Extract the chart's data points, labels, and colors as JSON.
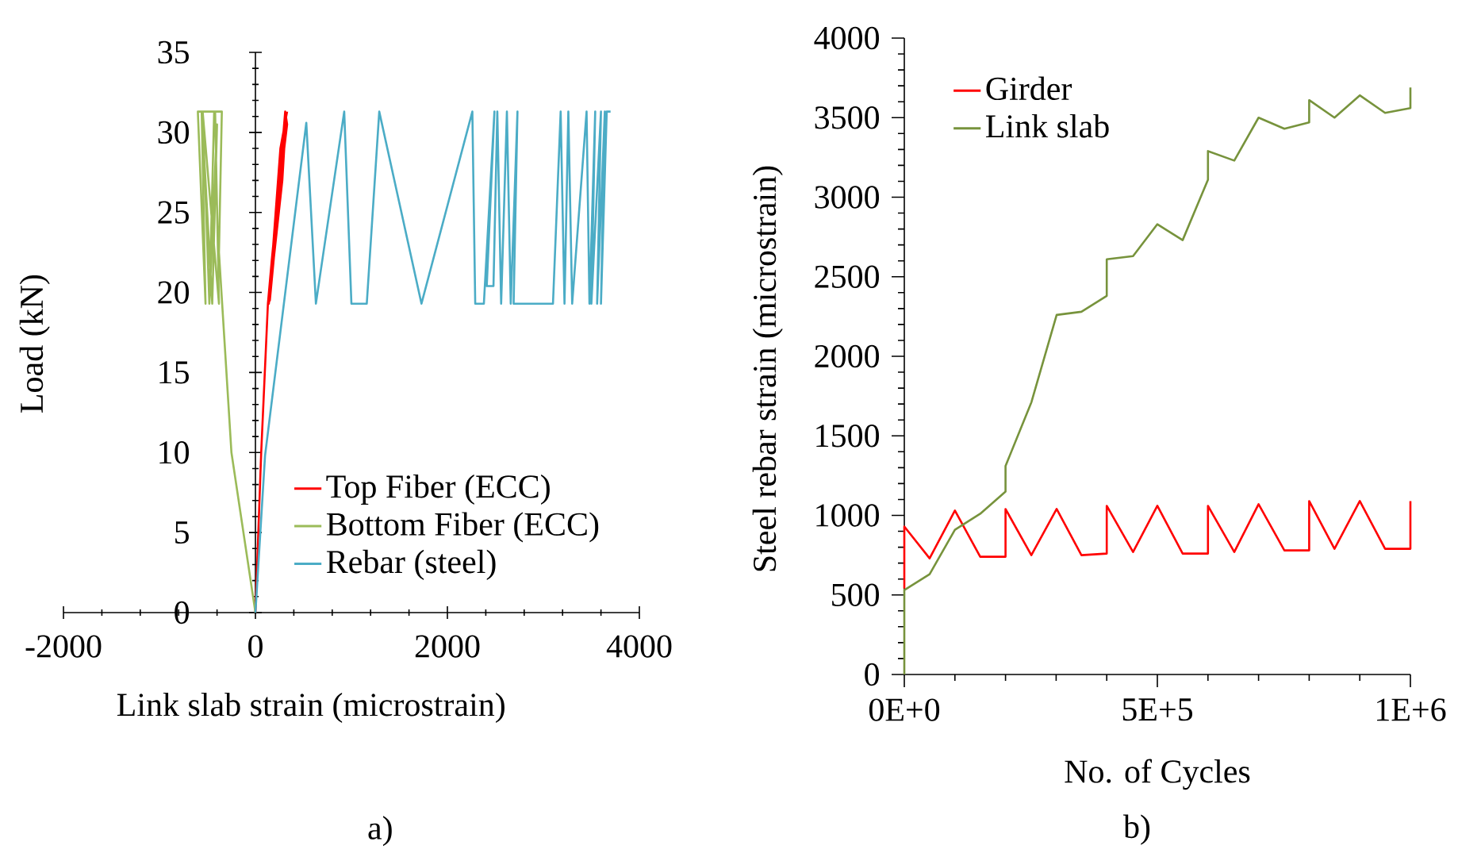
{
  "chart_data": [
    {
      "type": "line",
      "xlabel": "Link slab strain (microstrain)",
      "ylabel": "Load (kN)",
      "annotations": [
        "a)"
      ],
      "xlim": [
        -2000,
        4000
      ],
      "ylim": [
        0,
        35
      ],
      "xticks": [
        -2000,
        0,
        2000,
        4000
      ],
      "yticks": [
        0,
        5,
        10,
        15,
        20,
        25,
        30,
        35
      ],
      "legend": "bottom right",
      "marker": "none",
      "line_style": "solid",
      "series": [
        {
          "name": "Top Fiber (ECC)",
          "color": "#ff0000",
          "x": [
            0,
            60,
            130,
            170,
            250,
            310,
            330,
            300,
            150,
            200,
            320,
            280,
            140,
            260,
            330
          ],
          "values": [
            0,
            10,
            19.3,
            22,
            27,
            31.3,
            30.5,
            29,
            19.5,
            24,
            31,
            27,
            19.3,
            29,
            31.3
          ]
        },
        {
          "name": "Bottom Fiber (ECC)",
          "color": "#9bbb59",
          "x": [
            0,
            -250,
            -380,
            -350,
            -430,
            -480,
            -430,
            -600,
            -520,
            -560,
            -450,
            -400,
            -480,
            -550,
            -380,
            -420
          ],
          "values": [
            0,
            10,
            22.5,
            31.3,
            31.3,
            19.3,
            31.3,
            31.3,
            19.3,
            31.3,
            19.3,
            30.5,
            19.3,
            31.3,
            19.3,
            31.3
          ]
        },
        {
          "name": "Rebar (steel)",
          "color": "#4bacc6",
          "x": [
            0,
            100,
            530,
            630,
            925,
            1000,
            1160,
            1290,
            1730,
            2260,
            2290,
            2380,
            2490,
            2410,
            2480,
            2520,
            2560,
            2620,
            2660,
            2730,
            2690,
            3100,
            3180,
            3220,
            3260,
            3300,
            3450,
            3480,
            3540,
            3500,
            3600,
            3560,
            3640,
            3600,
            3660,
            3700
          ],
          "values": [
            0,
            9.8,
            30.6,
            19.3,
            31.3,
            19.3,
            19.3,
            31.3,
            19.3,
            31.3,
            19.3,
            19.3,
            31.3,
            20.4,
            20.4,
            31.3,
            19.3,
            31.3,
            19.3,
            31.3,
            19.3,
            19.3,
            31.3,
            19.3,
            31.3,
            19.3,
            31.3,
            19.3,
            31.3,
            19.3,
            31.3,
            19.3,
            31.3,
            19.3,
            31.3,
            31.3
          ]
        }
      ]
    },
    {
      "type": "line",
      "xlabel": "No. of Cycles",
      "ylabel": "Steel rebar strain (microstrain)",
      "annotations": [
        "b)"
      ],
      "xlim": [
        0,
        1000000
      ],
      "ylim": [
        0,
        4000
      ],
      "xticks": [
        {
          "value": 0,
          "label": "0E+0"
        },
        {
          "value": 500000,
          "label": "5E+5"
        },
        {
          "value": 1000000,
          "label": "1E+6"
        }
      ],
      "yticks": [
        0,
        500,
        1000,
        1500,
        2000,
        2500,
        3000,
        3500,
        4000
      ],
      "legend": "top left",
      "marker": "none",
      "line_style": "solid",
      "series": [
        {
          "name": "Girder",
          "color": "#ff0000",
          "x": [
            0,
            0,
            50000,
            100000,
            150000,
            200000,
            200000,
            251000,
            301000,
            350000,
            400000,
            400000,
            452000,
            500000,
            550000,
            600000,
            600000,
            652000,
            700000,
            751000,
            800000,
            800000,
            850000,
            900000,
            950000,
            1000000,
            1000000
          ],
          "values": [
            540,
            930,
            730,
            1030,
            740,
            740,
            1040,
            750,
            1040,
            750,
            760,
            1060,
            770,
            1060,
            760,
            760,
            1060,
            770,
            1070,
            780,
            780,
            1090,
            790,
            1090,
            790,
            790,
            1090
          ]
        },
        {
          "name": "Link slab",
          "color": "#77933c",
          "x": [
            0,
            0,
            50000,
            100000,
            150000,
            200000,
            200000,
            251000,
            301000,
            350000,
            400000,
            400000,
            452000,
            500000,
            550000,
            600000,
            600000,
            652000,
            700000,
            751000,
            800000,
            800000,
            850000,
            900000,
            950000,
            1000000,
            1000000
          ],
          "values": [
            0,
            530,
            630,
            910,
            1010,
            1150,
            1310,
            1710,
            2260,
            2280,
            2380,
            2610,
            2630,
            2830,
            2730,
            3110,
            3290,
            3230,
            3500,
            3430,
            3470,
            3610,
            3500,
            3640,
            3530,
            3560,
            3690
          ]
        }
      ]
    }
  ]
}
